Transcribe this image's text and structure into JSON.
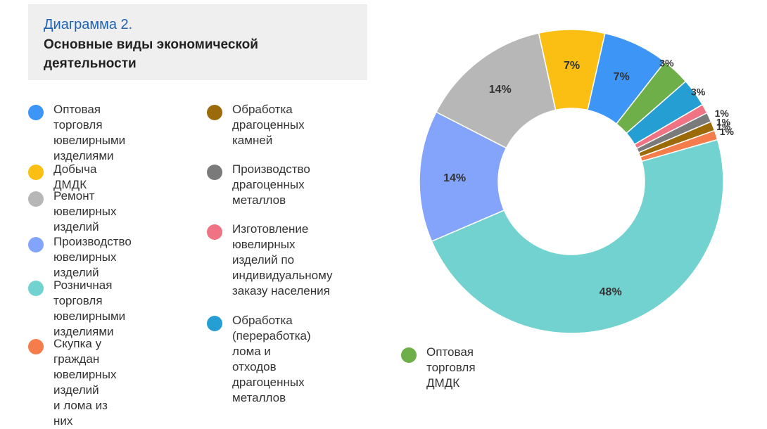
{
  "header": {
    "title": "Диаграмма 2.",
    "subtitle": "Основные виды экономической деятельности"
  },
  "legend": [
    {
      "label": "Оптовая торговля\nювелирными\nизделиями",
      "color": "#3d95f5"
    },
    {
      "label": "Добыча  ДМДК",
      "color": "#fbbf13"
    },
    {
      "label": "Ремонт ювелирных\nизделий",
      "color": "#b7b7b7"
    },
    {
      "label": "Производство\nювелирных изделий",
      "color": "#84a4fb"
    },
    {
      "label": "Розничная торговля\nювелирными\nизделиями",
      "color": "#72d2cf"
    },
    {
      "label": "Скупка у граждан\nювелирных изделий\nи лома из них",
      "color": "#f47d4b"
    },
    {
      "label": "Обработка\nдрагоценных\nкамней",
      "color": "#9a6b08"
    },
    {
      "label": "Производство\nдрагоценных\nметаллов",
      "color": "#7a7a7a"
    },
    {
      "label": "Изготовление\nювелирных\nизделий по\nиндивидуальному\nзаказу  населения",
      "color": "#f07384"
    },
    {
      "label": "Обработка\n(переработка) лома и\nотходов драгоценных\nметаллов",
      "color": "#259fd3"
    },
    {
      "label": "Оптовая торговля\nДМДК",
      "color": "#6faf4a"
    }
  ],
  "chart_data": {
    "type": "pie",
    "donut": true,
    "slices": [
      {
        "label": "Розничная торговля ювелирными изделиями",
        "value": 48,
        "text": "48%",
        "color": "#72d2cf"
      },
      {
        "label": "Производство ювелирных изделий",
        "value": 14,
        "text": "14%",
        "color": "#84a4fb"
      },
      {
        "label": "Ремонт ювелирных изделий",
        "value": 14,
        "text": "14%",
        "color": "#b7b7b7"
      },
      {
        "label": "Добыча  ДМДК",
        "value": 7,
        "text": "7%",
        "color": "#fbbf13"
      },
      {
        "label": "Оптовая торговля ювелирными изделиями",
        "value": 7,
        "text": "7%",
        "color": "#3d95f5"
      },
      {
        "label": "Оптовая торговля ДМДК",
        "value": 3,
        "text": "3%",
        "color": "#6faf4a"
      },
      {
        "label": "Обработка (переработка) лома и отходов драгоценных металлов",
        "value": 3,
        "text": "3%",
        "color": "#259fd3"
      },
      {
        "label": "Изготовление ювелирных изделий по индивидуальному заказу  населения",
        "value": 1,
        "text": "1%",
        "color": "#f07384"
      },
      {
        "label": "Производство драгоценных металлов",
        "value": 1,
        "text": "1%",
        "color": "#7a7a7a"
      },
      {
        "label": "Обработка драгоценных камней",
        "value": 1,
        "text": "1%",
        "color": "#9a6b08"
      },
      {
        "label": "Скупка у граждан ювелирных изделий и лома из них",
        "value": 1,
        "text": "1%",
        "color": "#f47d4b"
      }
    ]
  }
}
